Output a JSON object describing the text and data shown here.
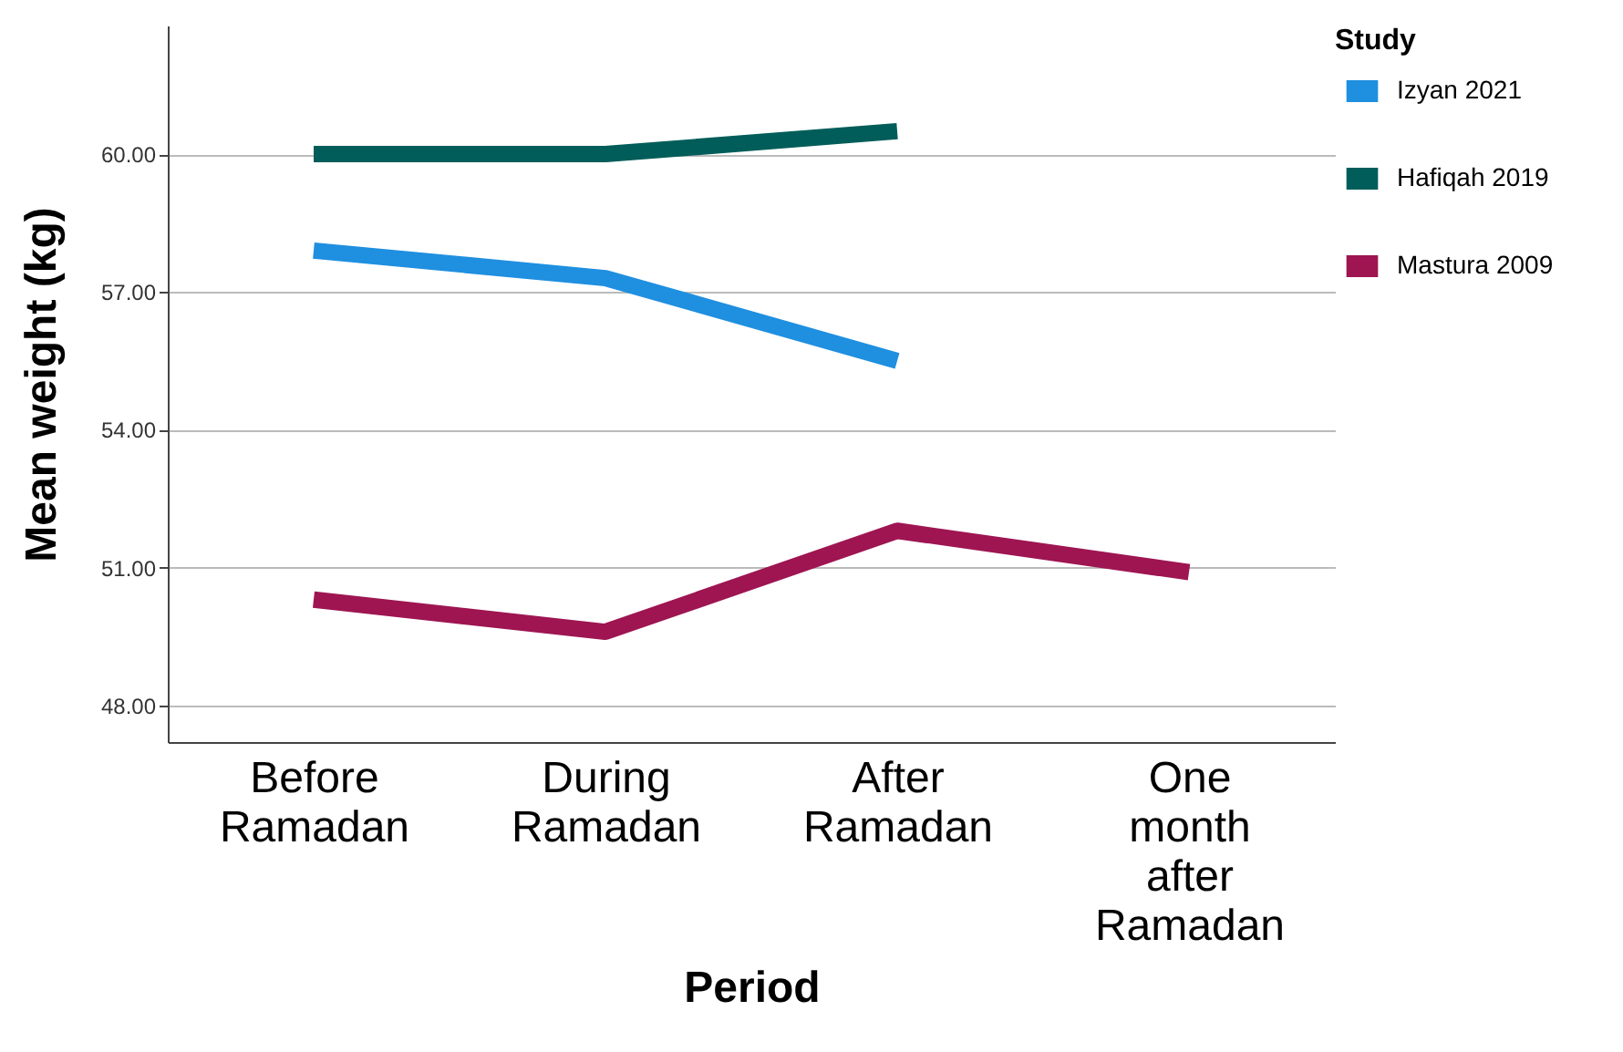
{
  "chart_data": {
    "type": "line",
    "xlabel": "Period",
    "ylabel": "Mean weight (kg)",
    "legend_title": "Study",
    "categories": [
      "Before Ramadan",
      "During Ramadan",
      "After Ramadan",
      "One month after Ramadan"
    ],
    "series": [
      {
        "name": "Izyan 2021",
        "color": "#1f8fe0",
        "values": [
          57.9,
          57.3,
          55.5,
          null
        ]
      },
      {
        "name": "Hafiqah 2019",
        "color": "#015d59",
        "values": [
          60.0,
          60.0,
          60.5,
          null
        ]
      },
      {
        "name": "Mastura 2009",
        "color": "#9e1552",
        "values": [
          50.3,
          49.6,
          51.8,
          50.9
        ]
      }
    ],
    "ylim": [
      47.2,
      62.8
    ],
    "yticks": [
      {
        "value": 48,
        "label": "48.00"
      },
      {
        "value": 51,
        "label": "51.00"
      },
      {
        "value": 54,
        "label": "54.00"
      },
      {
        "value": 57,
        "label": "57.00"
      },
      {
        "value": 60,
        "label": "60.00"
      }
    ],
    "grid": "y",
    "legend": "top right",
    "marker": "none",
    "line_style": "solid"
  }
}
